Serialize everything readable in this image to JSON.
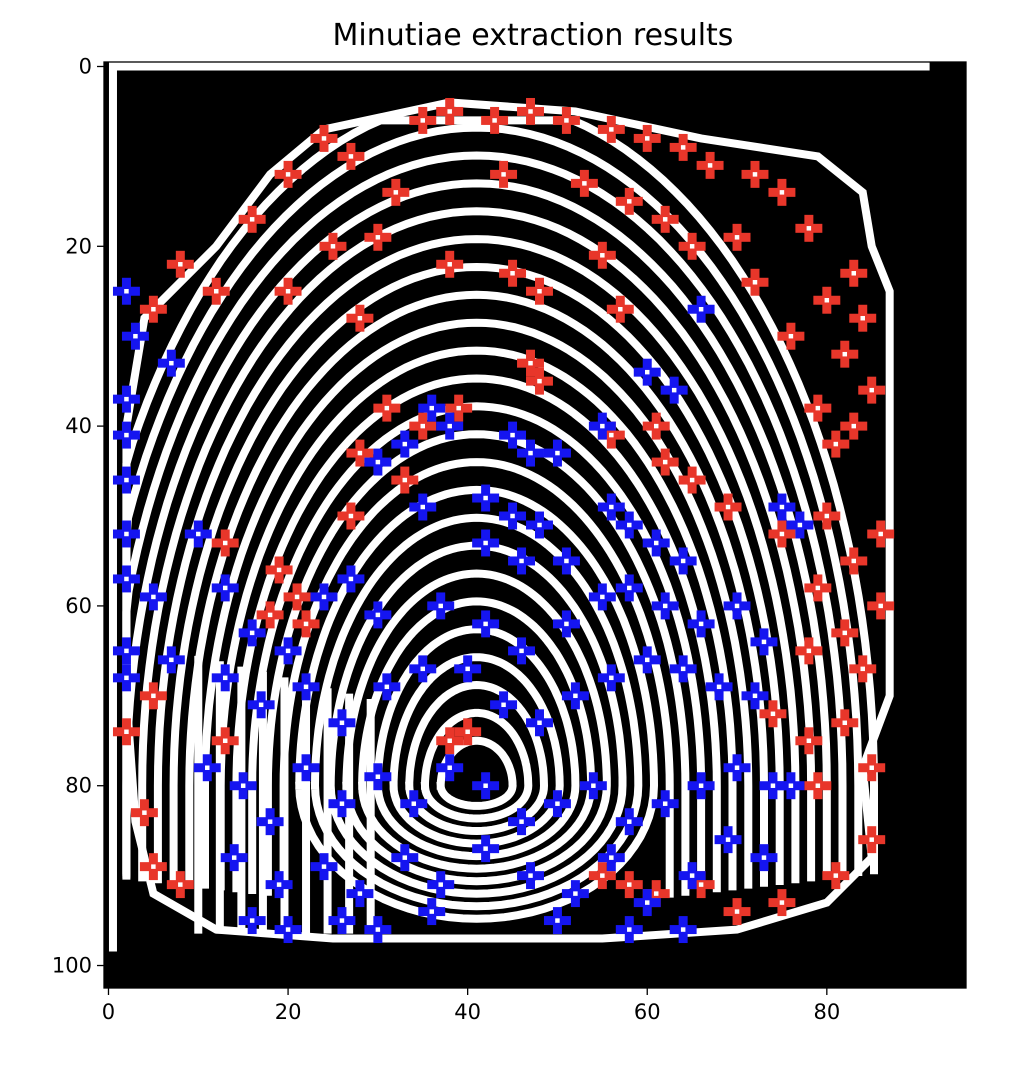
{
  "chart_data": {
    "type": "heatmap",
    "title": "Minutiae extraction results",
    "xlabel": "",
    "ylabel": "",
    "xlim": [
      -0.5,
      95.5
    ],
    "ylim": [
      102.5,
      -0.5
    ],
    "x_ticks": [
      0,
      20,
      40,
      60,
      80
    ],
    "y_ticks": [
      0,
      20,
      40,
      60,
      80,
      100
    ],
    "grid": false,
    "legend": "none",
    "image_shape": [
      103,
      96
    ],
    "colors": {
      "background": "#000000",
      "ridge": "#ffffff",
      "termination": "#e8362a",
      "bifurcation": "#1515f0"
    },
    "ridge_region": {
      "x_range": [
        2,
        87
      ],
      "y_range": [
        6,
        98
      ],
      "center": [
        41,
        80
      ]
    },
    "termination_points": [
      [
        24,
        8
      ],
      [
        35,
        6
      ],
      [
        38,
        5
      ],
      [
        43,
        6
      ],
      [
        47,
        5
      ],
      [
        51,
        6
      ],
      [
        56,
        7
      ],
      [
        60,
        8
      ],
      [
        64,
        9
      ],
      [
        67,
        11
      ],
      [
        72,
        12
      ],
      [
        75,
        14
      ],
      [
        20,
        12
      ],
      [
        27,
        10
      ],
      [
        32,
        14
      ],
      [
        44,
        12
      ],
      [
        53,
        13
      ],
      [
        58,
        15
      ],
      [
        62,
        17
      ],
      [
        70,
        19
      ],
      [
        78,
        18
      ],
      [
        83,
        23
      ],
      [
        16,
        17
      ],
      [
        25,
        20
      ],
      [
        30,
        19
      ],
      [
        38,
        22
      ],
      [
        45,
        23
      ],
      [
        55,
        21
      ],
      [
        65,
        20
      ],
      [
        72,
        24
      ],
      [
        80,
        26
      ],
      [
        84,
        28
      ],
      [
        8,
        22
      ],
      [
        12,
        25
      ],
      [
        5,
        27
      ],
      [
        20,
        25
      ],
      [
        28,
        28
      ],
      [
        48,
        25
      ],
      [
        57,
        27
      ],
      [
        76,
        30
      ],
      [
        82,
        32
      ],
      [
        47,
        33
      ],
      [
        48,
        35
      ],
      [
        79,
        38
      ],
      [
        83,
        40
      ],
      [
        81,
        42
      ],
      [
        85,
        36
      ],
      [
        31,
        38
      ],
      [
        35,
        40
      ],
      [
        39,
        38
      ],
      [
        28,
        43
      ],
      [
        33,
        46
      ],
      [
        27,
        50
      ],
      [
        56,
        41
      ],
      [
        61,
        40
      ],
      [
        62,
        44
      ],
      [
        65,
        46
      ],
      [
        69,
        49
      ],
      [
        75,
        52
      ],
      [
        80,
        50
      ],
      [
        86,
        52
      ],
      [
        83,
        55
      ],
      [
        79,
        58
      ],
      [
        86,
        60
      ],
      [
        82,
        63
      ],
      [
        78,
        65
      ],
      [
        84,
        67
      ],
      [
        13,
        53
      ],
      [
        19,
        56
      ],
      [
        21,
        59
      ],
      [
        18,
        61
      ],
      [
        22,
        62
      ],
      [
        5,
        70
      ],
      [
        2,
        74
      ],
      [
        13,
        75
      ],
      [
        38,
        75
      ],
      [
        40,
        74
      ],
      [
        74,
        72
      ],
      [
        78,
        75
      ],
      [
        82,
        73
      ],
      [
        85,
        78
      ],
      [
        79,
        80
      ],
      [
        4,
        83
      ],
      [
        5,
        89
      ],
      [
        8,
        91
      ],
      [
        55,
        90
      ],
      [
        58,
        91
      ],
      [
        61,
        92
      ],
      [
        66,
        91
      ],
      [
        70,
        94
      ],
      [
        75,
        93
      ],
      [
        81,
        90
      ],
      [
        85,
        86
      ]
    ],
    "bifurcation_points": [
      [
        2,
        25
      ],
      [
        3,
        30
      ],
      [
        7,
        33
      ],
      [
        2,
        37
      ],
      [
        2,
        41
      ],
      [
        2,
        46
      ],
      [
        2,
        52
      ],
      [
        2,
        57
      ],
      [
        5,
        59
      ],
      [
        2,
        65
      ],
      [
        2,
        68
      ],
      [
        66,
        27
      ],
      [
        60,
        34
      ],
      [
        63,
        36
      ],
      [
        36,
        38
      ],
      [
        38,
        40
      ],
      [
        33,
        42
      ],
      [
        30,
        44
      ],
      [
        45,
        41
      ],
      [
        47,
        43
      ],
      [
        50,
        43
      ],
      [
        55,
        40
      ],
      [
        35,
        49
      ],
      [
        42,
        48
      ],
      [
        45,
        50
      ],
      [
        48,
        51
      ],
      [
        42,
        53
      ],
      [
        46,
        55
      ],
      [
        51,
        55
      ],
      [
        56,
        49
      ],
      [
        58,
        51
      ],
      [
        61,
        53
      ],
      [
        64,
        55
      ],
      [
        75,
        49
      ],
      [
        77,
        51
      ],
      [
        10,
        52
      ],
      [
        13,
        58
      ],
      [
        16,
        63
      ],
      [
        24,
        59
      ],
      [
        27,
        57
      ],
      [
        20,
        65
      ],
      [
        30,
        61
      ],
      [
        37,
        60
      ],
      [
        42,
        62
      ],
      [
        46,
        65
      ],
      [
        51,
        62
      ],
      [
        55,
        59
      ],
      [
        58,
        58
      ],
      [
        62,
        60
      ],
      [
        66,
        62
      ],
      [
        70,
        60
      ],
      [
        73,
        64
      ],
      [
        7,
        66
      ],
      [
        13,
        68
      ],
      [
        17,
        71
      ],
      [
        22,
        69
      ],
      [
        26,
        73
      ],
      [
        31,
        69
      ],
      [
        35,
        67
      ],
      [
        40,
        67
      ],
      [
        44,
        71
      ],
      [
        48,
        73
      ],
      [
        52,
        70
      ],
      [
        56,
        68
      ],
      [
        60,
        66
      ],
      [
        64,
        67
      ],
      [
        68,
        69
      ],
      [
        72,
        70
      ],
      [
        11,
        78
      ],
      [
        15,
        80
      ],
      [
        18,
        84
      ],
      [
        22,
        78
      ],
      [
        26,
        82
      ],
      [
        30,
        79
      ],
      [
        34,
        82
      ],
      [
        38,
        78
      ],
      [
        42,
        80
      ],
      [
        46,
        84
      ],
      [
        50,
        82
      ],
      [
        54,
        80
      ],
      [
        58,
        84
      ],
      [
        62,
        82
      ],
      [
        66,
        80
      ],
      [
        70,
        78
      ],
      [
        74,
        80
      ],
      [
        14,
        88
      ],
      [
        19,
        91
      ],
      [
        24,
        89
      ],
      [
        28,
        92
      ],
      [
        33,
        88
      ],
      [
        37,
        91
      ],
      [
        42,
        87
      ],
      [
        47,
        90
      ],
      [
        52,
        92
      ],
      [
        56,
        88
      ],
      [
        60,
        93
      ],
      [
        65,
        90
      ],
      [
        69,
        86
      ],
      [
        73,
        88
      ],
      [
        16,
        95
      ],
      [
        20,
        96
      ],
      [
        26,
        95
      ],
      [
        30,
        96
      ],
      [
        36,
        94
      ],
      [
        50,
        95
      ],
      [
        58,
        96
      ],
      [
        64,
        96
      ],
      [
        76,
        80
      ]
    ]
  }
}
